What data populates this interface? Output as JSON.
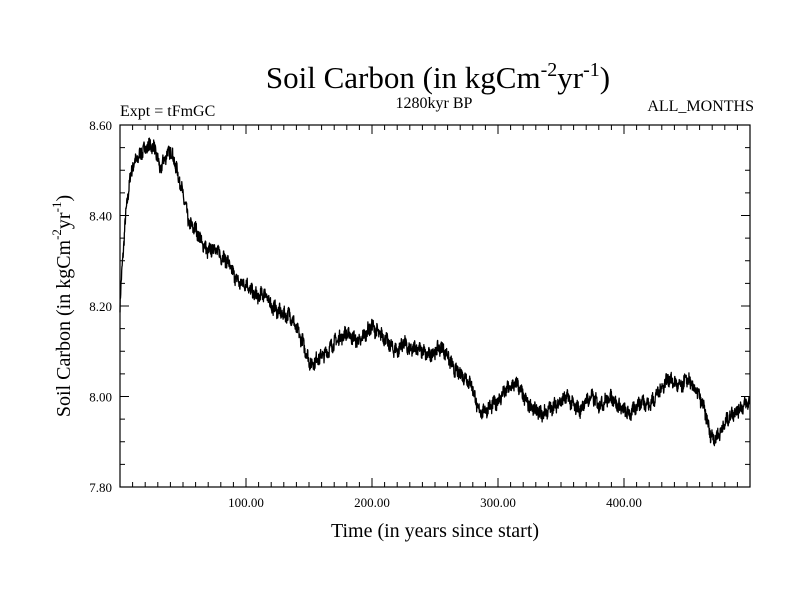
{
  "chart_data": {
    "type": "line",
    "title": {
      "main": "Soil Carbon (in kgCm",
      "sup1": "-2",
      "mid": "yr",
      "sup2": "-1",
      "end": ")"
    },
    "subtitle_left": "Expt = tFmGC",
    "subtitle_center": "1280kyr BP",
    "subtitle_right": "ALL_MONTHS",
    "xlabel": "Time (in years since start)",
    "ylabel": {
      "main": "Soil Carbon (in kgCm",
      "sup1": "-2",
      "mid": "yr",
      "sup2": "-1",
      "end": ")"
    },
    "xlim": [
      0,
      500
    ],
    "ylim": [
      7.8,
      8.6
    ],
    "x_ticks": [
      100,
      200,
      300,
      400
    ],
    "x_tick_labels": [
      "100.00",
      "200.00",
      "300.00",
      "400.00"
    ],
    "y_ticks": [
      7.8,
      8.0,
      8.2,
      8.4,
      8.6
    ],
    "y_tick_labels": [
      "7.80",
      "8.00",
      "8.20",
      "8.40",
      "8.60"
    ],
    "series": [
      {
        "name": "Soil Carbon",
        "color": "#000000",
        "x": [
          0,
          2,
          4,
          6,
          8,
          10,
          15,
          20,
          25,
          28,
          32,
          36,
          40,
          43,
          48,
          52,
          55,
          60,
          65,
          70,
          75,
          80,
          85,
          90,
          95,
          100,
          105,
          110,
          115,
          120,
          125,
          130,
          135,
          140,
          145,
          150,
          152,
          155,
          160,
          165,
          170,
          175,
          180,
          185,
          190,
          195,
          200,
          205,
          210,
          215,
          220,
          225,
          230,
          235,
          240,
          245,
          250,
          255,
          260,
          265,
          270,
          275,
          280,
          283,
          286,
          290,
          295,
          300,
          305,
          310,
          315,
          320,
          325,
          330,
          335,
          340,
          345,
          350,
          355,
          360,
          365,
          370,
          375,
          380,
          385,
          390,
          395,
          400,
          405,
          410,
          415,
          420,
          425,
          430,
          435,
          440,
          445,
          450,
          455,
          460,
          465,
          468,
          472,
          476,
          480,
          485,
          490,
          495,
          500
        ],
        "values": [
          8.2,
          8.3,
          8.38,
          8.44,
          8.48,
          8.51,
          8.53,
          8.55,
          8.555,
          8.545,
          8.5,
          8.53,
          8.545,
          8.52,
          8.47,
          8.42,
          8.38,
          8.37,
          8.34,
          8.32,
          8.33,
          8.31,
          8.3,
          8.27,
          8.25,
          8.25,
          8.23,
          8.22,
          8.23,
          8.2,
          8.19,
          8.18,
          8.18,
          8.15,
          8.12,
          8.08,
          8.07,
          8.08,
          8.09,
          8.1,
          8.12,
          8.13,
          8.14,
          8.13,
          8.12,
          8.14,
          8.155,
          8.14,
          8.13,
          8.11,
          8.1,
          8.12,
          8.1,
          8.11,
          8.1,
          8.09,
          8.1,
          8.11,
          8.09,
          8.06,
          8.05,
          8.04,
          8.02,
          7.98,
          7.965,
          7.97,
          7.98,
          7.99,
          8.01,
          8.02,
          8.03,
          8.0,
          7.98,
          7.97,
          7.96,
          7.97,
          7.98,
          7.99,
          8.0,
          7.98,
          7.97,
          7.99,
          8.0,
          7.98,
          7.99,
          8.0,
          7.98,
          7.97,
          7.96,
          7.98,
          7.99,
          7.98,
          8.0,
          8.02,
          8.04,
          8.03,
          8.02,
          8.04,
          8.02,
          8.0,
          7.96,
          7.92,
          7.905,
          7.92,
          7.94,
          7.96,
          7.97,
          7.98,
          7.99
        ]
      }
    ]
  }
}
